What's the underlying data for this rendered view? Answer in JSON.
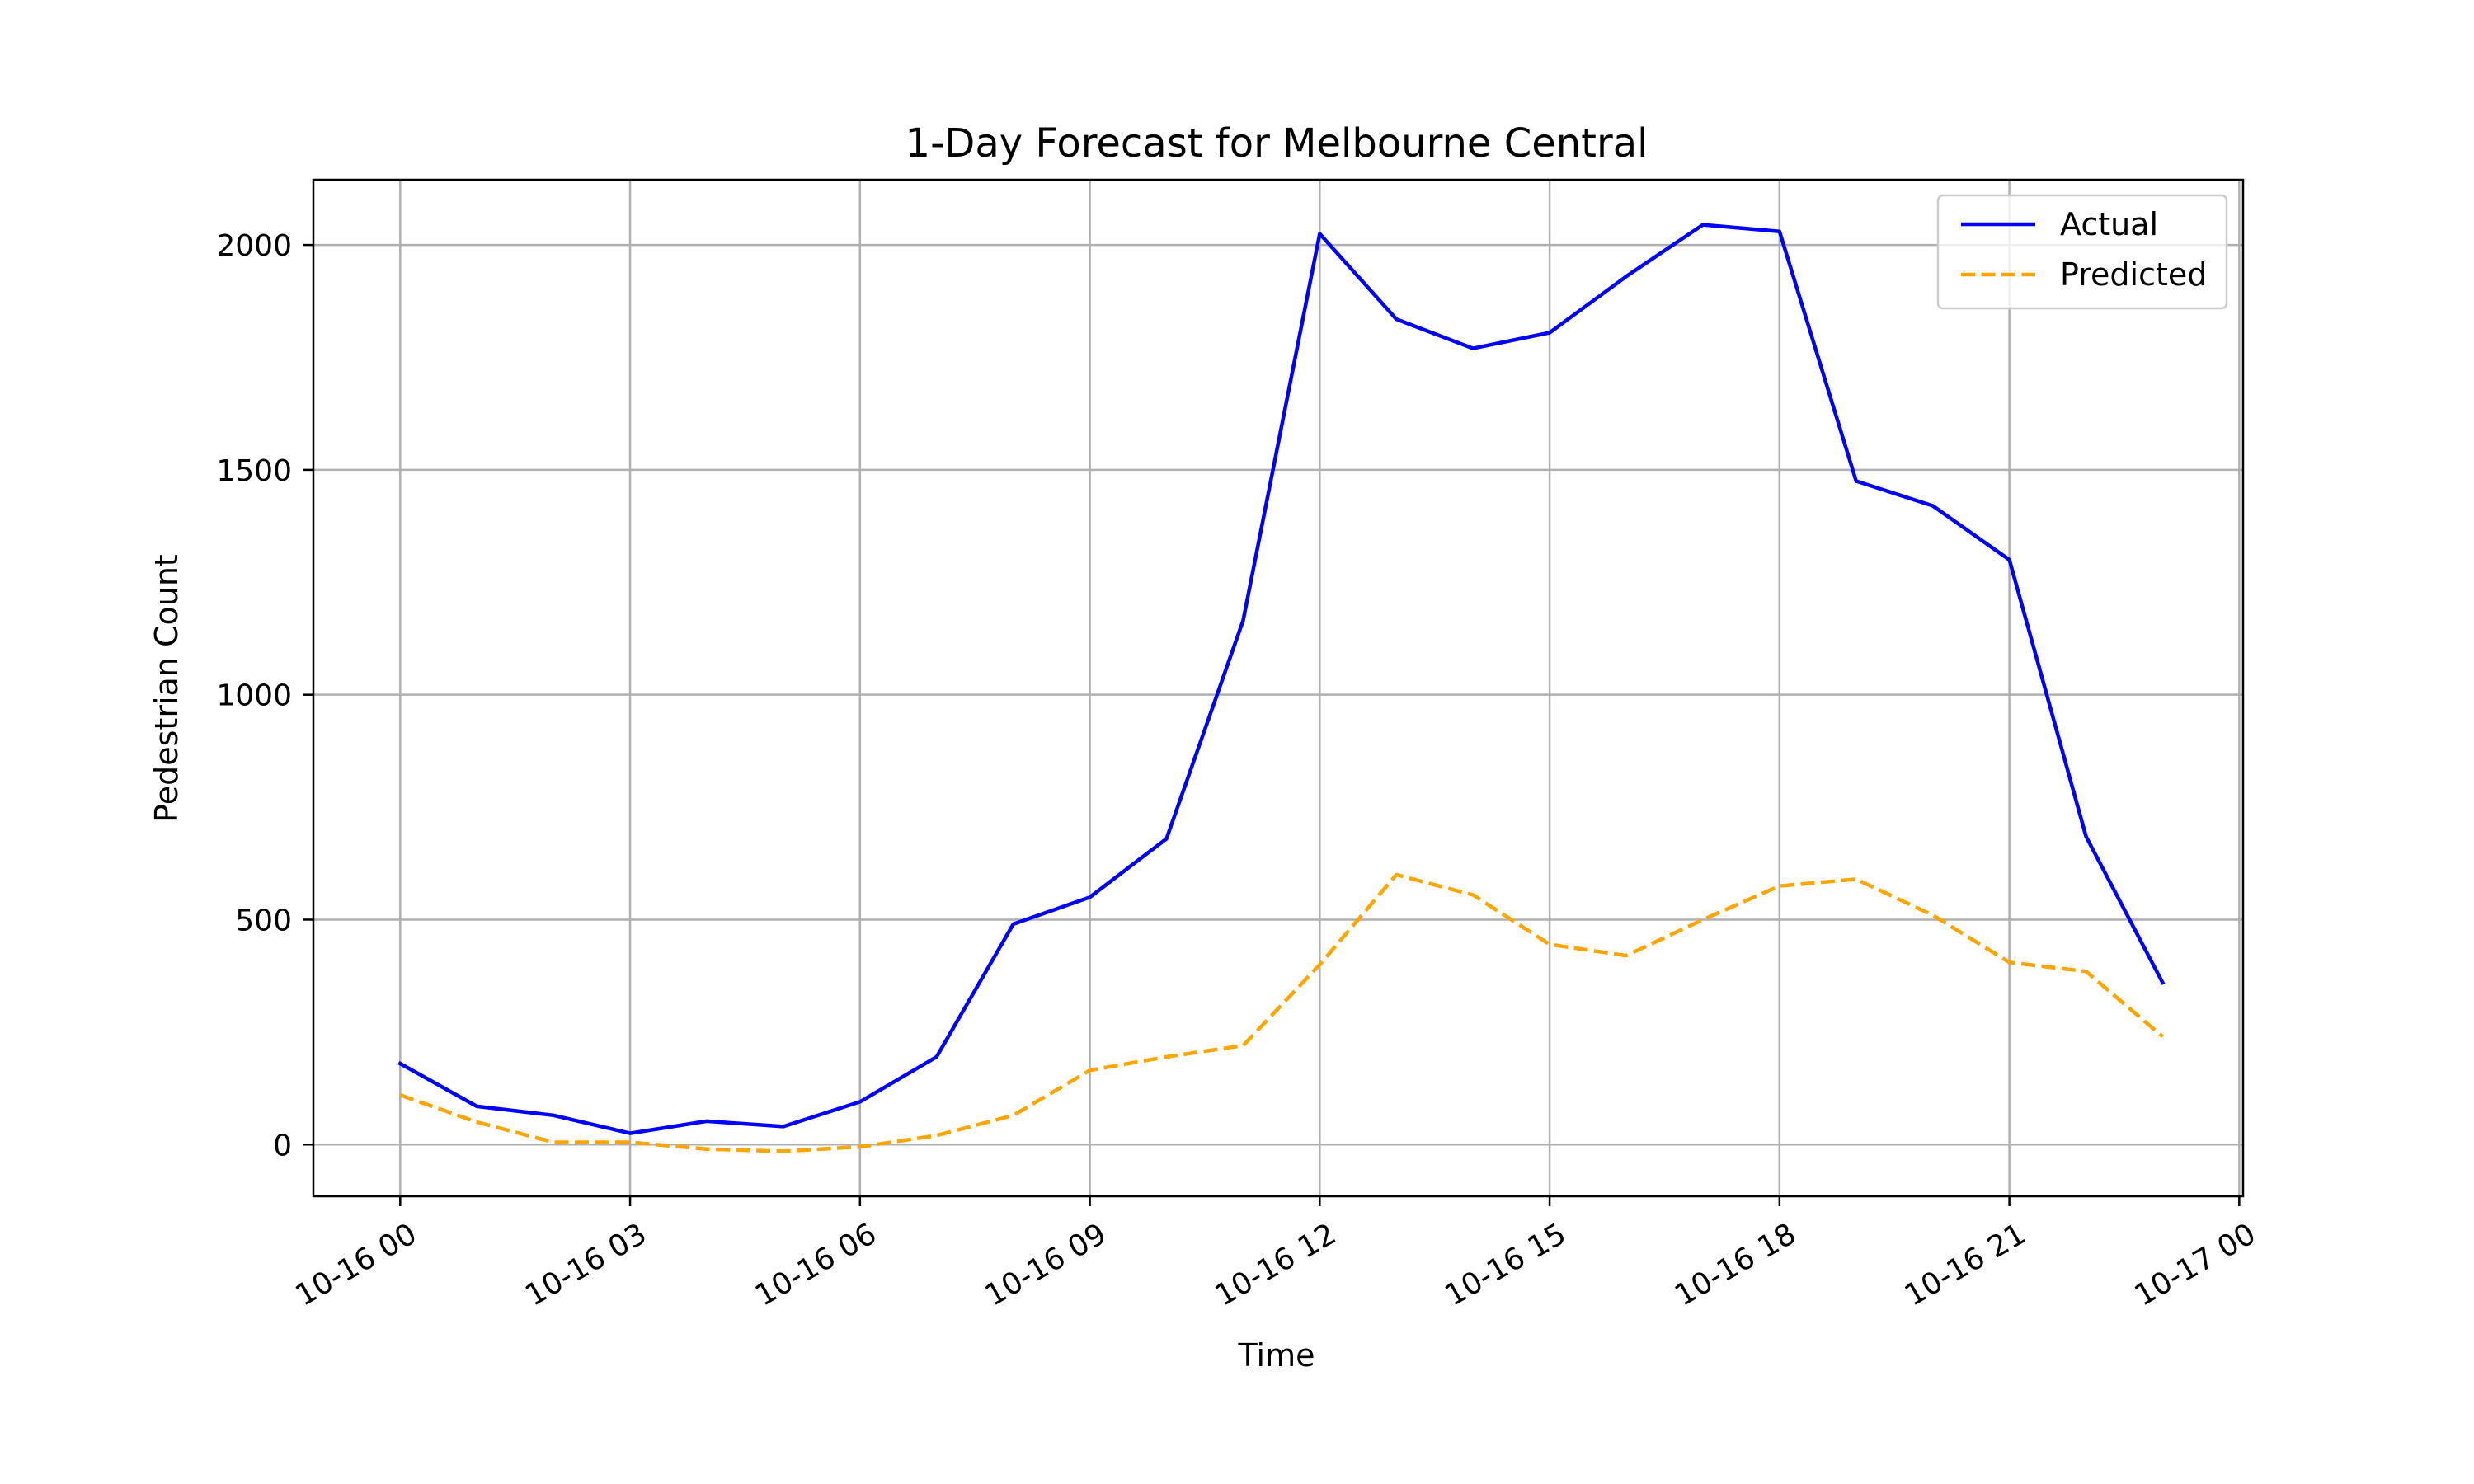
{
  "chart_data": {
    "type": "line",
    "title": "1-Day Forecast for Melbourne Central",
    "xlabel": "Time",
    "ylabel": "Pedestrian Count",
    "x_type": "datetime",
    "x": [
      "10-16 00:00",
      "10-16 01:00",
      "10-16 02:00",
      "10-16 03:00",
      "10-16 04:00",
      "10-16 05:00",
      "10-16 06:00",
      "10-16 07:00",
      "10-16 08:00",
      "10-16 09:00",
      "10-16 10:00",
      "10-16 11:00",
      "10-16 12:00",
      "10-16 13:00",
      "10-16 14:00",
      "10-16 15:00",
      "10-16 16:00",
      "10-16 17:00",
      "10-16 18:00",
      "10-16 19:00",
      "10-16 20:00",
      "10-16 21:00",
      "10-16 22:00",
      "10-16 23:00"
    ],
    "x_ticks": [
      "10-16 00",
      "10-16 03",
      "10-16 06",
      "10-16 09",
      "10-16 12",
      "10-16 15",
      "10-16 18",
      "10-16 21",
      "10-17 00"
    ],
    "xlim": [
      "10-15 22:52",
      "10-17 00:03"
    ],
    "y_ticks": [
      0,
      500,
      1000,
      1500,
      2000
    ],
    "ylim": [
      -115,
      2145
    ],
    "grid": true,
    "legend_position": "upper-right",
    "series": [
      {
        "name": "Actual",
        "color": "#0000ff",
        "style": "solid",
        "values": [
          180,
          85,
          65,
          25,
          52,
          40,
          95,
          195,
          490,
          550,
          680,
          1165,
          2025,
          1835,
          1770,
          1805,
          1930,
          2045,
          2030,
          1475,
          1420,
          1300,
          685,
          360
        ]
      },
      {
        "name": "Predicted",
        "color": "#ffa500",
        "style": "dashed",
        "values": [
          110,
          50,
          5,
          5,
          -10,
          -15,
          -5,
          20,
          65,
          165,
          195,
          220,
          400,
          600,
          555,
          445,
          420,
          500,
          575,
          590,
          510,
          405,
          385,
          240
        ]
      }
    ]
  }
}
